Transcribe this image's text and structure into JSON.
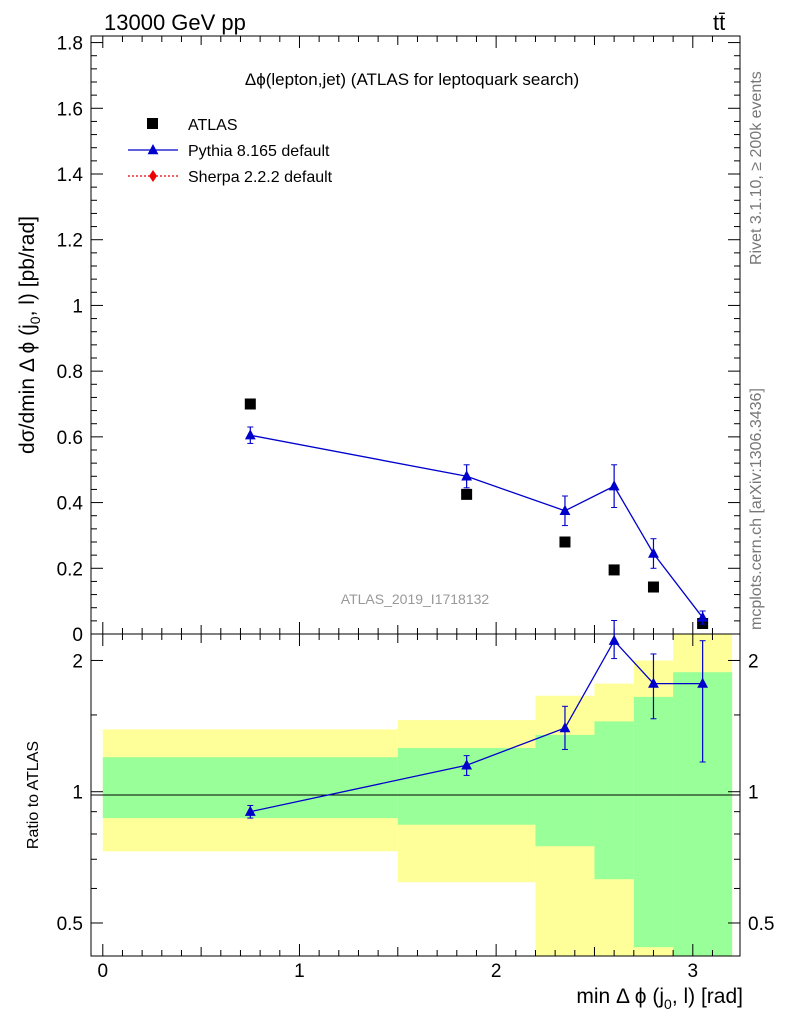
{
  "header": {
    "energy_label": "13000 GeV pp",
    "process_label": "tt̄",
    "side_label_top": "Rivet 3.1.10, ≥ 200k events",
    "side_label_bottom": "mcplots.cern.ch [arXiv:1306.3436]",
    "plot_title": "Δϕ(lepton,jet) (ATLAS for leptoquark search)",
    "analysis_id": "ATLAS_2019_I1718132"
  },
  "chart_data": [
    {
      "panel": "main",
      "type": "scatter",
      "ylabel": "dσ/dmin Δ ϕ (j0, l) [pb/rad]",
      "xlim": [
        -0.06,
        3.24
      ],
      "ylim": [
        0,
        1.82
      ],
      "yticks": [
        0,
        0.2,
        0.4,
        0.6,
        0.8,
        1,
        1.2,
        1.4,
        1.6,
        1.8
      ],
      "ytick_labels": [
        "0",
        "0.2",
        "0.4",
        "0.6",
        "0.8",
        "1",
        "1.2",
        "1.4",
        "1.6",
        "1.8"
      ],
      "legend": [
        {
          "label": "ATLAS",
          "color": "#000000",
          "marker": "square"
        },
        {
          "label": "Pythia 8.165 default",
          "color": "#0000cc",
          "marker": "triangle"
        },
        {
          "label": "Sherpa 2.2.2 default",
          "color": "#ee0000",
          "marker": "diamond"
        }
      ],
      "series": [
        {
          "name": "ATLAS",
          "color": "#000000",
          "marker": "square",
          "x": [
            0.75,
            1.85,
            2.35,
            2.6,
            2.8,
            3.05
          ],
          "y": [
            0.7,
            0.425,
            0.28,
            0.195,
            0.143,
            0.032
          ]
        },
        {
          "name": "Pythia 8.165 default",
          "color": "#0000cc",
          "marker": "triangle",
          "x": [
            0.75,
            1.85,
            2.35,
            2.6,
            2.8,
            3.05
          ],
          "y": [
            0.605,
            0.48,
            0.375,
            0.45,
            0.245,
            0.05
          ],
          "err": [
            0.025,
            0.035,
            0.045,
            0.065,
            0.045,
            0.02
          ]
        }
      ]
    },
    {
      "panel": "ratio",
      "type": "line",
      "ylabel": "Ratio to ATLAS",
      "xlabel": "min Δ ϕ (j0, l) [rad]",
      "xlim": [
        -0.06,
        3.24
      ],
      "ylim": [
        0.42,
        2.3
      ],
      "yscale": "log",
      "yticks": [
        0.5,
        1,
        2
      ],
      "ytick_labels": [
        "0.5",
        "1",
        "2"
      ],
      "xticks": [
        0,
        1,
        2,
        3
      ],
      "xtick_labels": [
        "0",
        "1",
        "2",
        "3"
      ],
      "bands": {
        "bin_edges": [
          0,
          1.5,
          2.2,
          2.5,
          2.7,
          2.9,
          3.2
        ],
        "yellow_low": [
          0.73,
          0.62,
          0.42,
          0.42,
          0.42,
          0.42
        ],
        "yellow_high": [
          1.39,
          1.46,
          1.66,
          1.77,
          2.0,
          2.3
        ],
        "green_low": [
          0.87,
          0.84,
          0.75,
          0.63,
          0.44,
          0.42
        ],
        "green_high": [
          1.2,
          1.26,
          1.35,
          1.45,
          1.65,
          1.88
        ]
      },
      "series": [
        {
          "name": "Pythia 8.165 default",
          "color": "#0000cc",
          "marker": "triangle",
          "x": [
            0.75,
            1.85,
            2.35,
            2.6,
            2.8,
            3.05
          ],
          "y": [
            0.9,
            1.15,
            1.4,
            2.22,
            1.77,
            1.77
          ],
          "err_low": [
            0.03,
            0.06,
            0.15,
            0.2,
            0.3,
            0.6
          ],
          "err_high": [
            0.03,
            0.06,
            0.17,
            0.25,
            0.3,
            0.45
          ]
        }
      ]
    }
  ]
}
